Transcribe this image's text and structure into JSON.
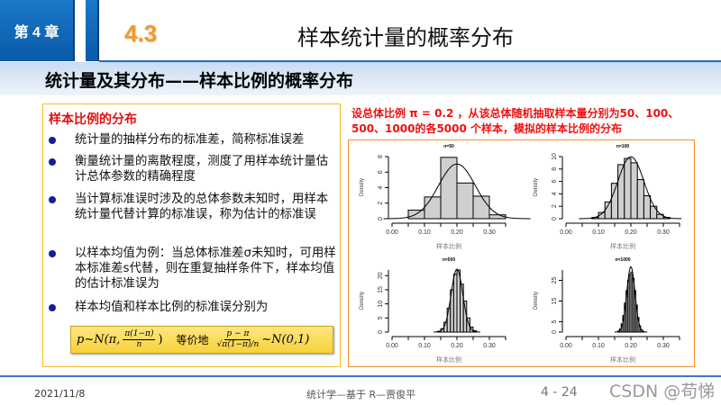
{
  "header": {
    "chapter": "第 4 章",
    "section_number": "4.3",
    "title": "样本统计量的概率分布"
  },
  "subtitle": "统计量及其分布——样本比例的概率分布",
  "left_panel": {
    "heading": "样本比例的分布",
    "bullets": [
      "统计量的抽样分布的标准差，简称标准误差",
      "衡量统计量的离散程度，测度了用样本统计量估计总体参数的精确程度",
      "当计算标准误时涉及的总体参数未知时，用样本统计量代替计算的标准误，称为估计的标准误",
      "以样本均值为例：当总体标准差σ未知时，可用样本标准差s代替，则在重复抽样条件下，样本均值的估计标准误为",
      "样本均值和样本比例的标准误分别为"
    ],
    "formula": {
      "left": "p~N(π,",
      "frac1_num": "π(1−π)",
      "frac1_den": "n",
      "close": ")",
      "equiv": "等价地",
      "frac2_num": "p − π",
      "frac2_den": "√π(1−π)/n",
      "right": "~N(0,1)"
    }
  },
  "right_panel": {
    "caption_line1": "设总体比例 π = 0.2 ，从该总体随机抽取样本量分别为50、100、",
    "caption_line2": "500、1000的各5000 个样本，模拟的样本比例的分布"
  },
  "chart_data": [
    {
      "type": "bar",
      "title": "n=50",
      "xlabel": "样本比例",
      "ylabel": "Density",
      "xlim": [
        0,
        0.35
      ],
      "xticks": [
        "0.00",
        "0.10",
        "0.20",
        "0.30"
      ],
      "yticks": [
        "0",
        "2",
        "4",
        "6",
        "8"
      ],
      "ylim": [
        0,
        8
      ],
      "bin_width": 0.05,
      "bin_starts": [
        0.05,
        0.1,
        0.15,
        0.2,
        0.25,
        0.3
      ],
      "values": [
        1.1,
        2.8,
        7.9,
        4.6,
        2.9,
        0.5
      ],
      "density_curve": true
    },
    {
      "type": "bar",
      "title": "n=100",
      "xlabel": "样本比例",
      "ylabel": "Density",
      "xlim": [
        0,
        0.35
      ],
      "xticks": [
        "0.00",
        "0.10",
        "0.20",
        "0.30"
      ],
      "yticks": [
        "0",
        "2",
        "4",
        "6",
        "8",
        "10"
      ],
      "ylim": [
        0,
        10
      ],
      "bin_width": 0.02,
      "bin_starts": [
        0.08,
        0.1,
        0.12,
        0.14,
        0.16,
        0.18,
        0.2,
        0.22,
        0.24,
        0.26,
        0.28,
        0.3
      ],
      "values": [
        0.2,
        1.0,
        2.7,
        5.7,
        8.7,
        9.7,
        9.0,
        6.3,
        3.7,
        2.0,
        0.7,
        0.2
      ],
      "density_curve": true
    },
    {
      "type": "bar",
      "title": "n=500",
      "xlabel": "样本比例",
      "ylabel": "Density",
      "xlim": [
        0,
        0.35
      ],
      "xticks": [
        "0.00",
        "0.10",
        "0.20",
        "0.30"
      ],
      "yticks": [
        "0",
        "5",
        "10",
        "15",
        "20"
      ],
      "ylim": [
        0,
        22
      ],
      "bin_width": 0.01,
      "bin_starts": [
        0.14,
        0.15,
        0.16,
        0.17,
        0.18,
        0.19,
        0.2,
        0.21,
        0.22,
        0.23,
        0.24,
        0.25
      ],
      "values": [
        0.3,
        1.2,
        3.5,
        8.5,
        15,
        20.5,
        22,
        17,
        11,
        5,
        1.8,
        0.5
      ],
      "density_curve": true
    },
    {
      "type": "bar",
      "title": "n=1000",
      "xlabel": "样本比例",
      "ylabel": "Density",
      "xlim": [
        0,
        0.35
      ],
      "xticks": [
        "0.00",
        "0.10",
        "0.20",
        "0.30"
      ],
      "yticks": [
        "0",
        "5",
        "15",
        "25"
      ],
      "ylim": [
        0,
        30
      ],
      "bin_width": 0.005,
      "bin_starts": [
        0.16,
        0.165,
        0.17,
        0.175,
        0.18,
        0.185,
        0.19,
        0.195,
        0.2,
        0.205,
        0.21,
        0.215,
        0.22,
        0.225,
        0.23,
        0.235
      ],
      "values": [
        0.5,
        1.5,
        4,
        8,
        14,
        20,
        25,
        28,
        29,
        26,
        20,
        13,
        7,
        3,
        1.2,
        0.4
      ],
      "density_curve": true
    }
  ],
  "footer": {
    "date": "2021/11/8",
    "course": "统计学—基于 R—贾俊平",
    "page": "4 - 24",
    "watermark": "CSDN @苟悌"
  }
}
